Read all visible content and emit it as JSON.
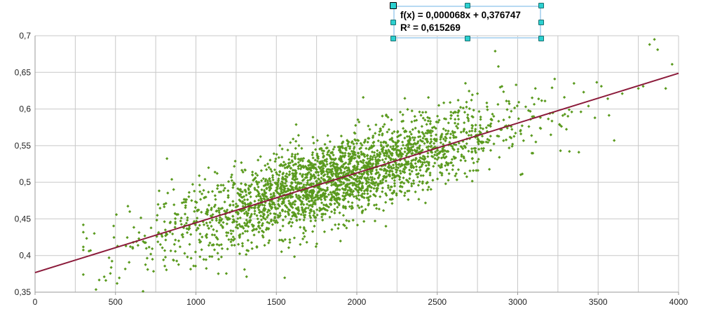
{
  "chart_data": {
    "type": "scatter",
    "title": "",
    "xlabel": "",
    "ylabel": "",
    "xlim": [
      0,
      4000
    ],
    "ylim": [
      0.35,
      0.7
    ],
    "x_ticks": [
      "0",
      "500",
      "1000",
      "1500",
      "2000",
      "2500",
      "3000",
      "3500",
      "4000"
    ],
    "y_ticks": [
      "0,35",
      "0,4",
      "0,45",
      "0,5",
      "0,55",
      "0,6",
      "0,65",
      "0,7"
    ],
    "grid": true,
    "series": [
      {
        "marker_color": "#5a9a1e",
        "points": [
          [
            430,
            0.371
          ],
          [
            440,
            0.366
          ],
          [
            460,
            0.397
          ],
          [
            510,
            0.362
          ],
          [
            610,
            0.418
          ],
          [
            640,
            0.414
          ],
          [
            700,
            0.381
          ],
          [
            730,
            0.395
          ],
          [
            760,
            0.455
          ],
          [
            790,
            0.426
          ],
          [
            850,
            0.504
          ],
          [
            880,
            0.456
          ],
          [
            930,
            0.403
          ],
          [
            960,
            0.437
          ],
          [
            990,
            0.488
          ],
          [
            1010,
            0.462
          ],
          [
            1050,
            0.442
          ],
          [
            1080,
            0.414
          ],
          [
            1120,
            0.469
          ],
          [
            1150,
            0.452
          ],
          [
            1170,
            0.496
          ],
          [
            1200,
            0.431
          ],
          [
            1230,
            0.474
          ],
          [
            1260,
            0.459
          ],
          [
            1290,
            0.413
          ],
          [
            1310,
            0.487
          ],
          [
            1340,
            0.448
          ],
          [
            1370,
            0.506
          ],
          [
            1400,
            0.469
          ],
          [
            1420,
            0.432
          ],
          [
            1440,
            0.491
          ],
          [
            1470,
            0.479
          ],
          [
            1490,
            0.517
          ],
          [
            1510,
            0.455
          ],
          [
            1530,
            0.488
          ],
          [
            1560,
            0.502
          ],
          [
            1580,
            0.471
          ],
          [
            1600,
            0.528
          ],
          [
            1620,
            0.493
          ],
          [
            1640,
            0.461
          ],
          [
            1660,
            0.509
          ],
          [
            1680,
            0.486
          ],
          [
            1700,
            0.523
          ],
          [
            1720,
            0.498
          ],
          [
            1740,
            0.475
          ],
          [
            1760,
            0.535
          ],
          [
            1780,
            0.506
          ],
          [
            1800,
            0.489
          ],
          [
            1820,
            0.541
          ],
          [
            1840,
            0.513
          ],
          [
            1860,
            0.497
          ],
          [
            1880,
            0.524
          ],
          [
            1900,
            0.548
          ],
          [
            1920,
            0.508
          ],
          [
            1940,
            0.486
          ],
          [
            1960,
            0.532
          ],
          [
            1980,
            0.517
          ],
          [
            2000,
            0.553
          ],
          [
            2020,
            0.501
          ],
          [
            2040,
            0.539
          ],
          [
            2060,
            0.522
          ],
          [
            2080,
            0.494
          ],
          [
            2100,
            0.561
          ],
          [
            2120,
            0.528
          ],
          [
            2140,
            0.509
          ],
          [
            2160,
            0.546
          ],
          [
            2180,
            0.532
          ],
          [
            2200,
            0.572
          ],
          [
            2220,
            0.515
          ],
          [
            2240,
            0.554
          ],
          [
            2260,
            0.537
          ],
          [
            2280,
            0.583
          ],
          [
            2300,
            0.521
          ],
          [
            2330,
            0.559
          ],
          [
            2360,
            0.544
          ],
          [
            2390,
            0.596
          ],
          [
            2420,
            0.531
          ],
          [
            2450,
            0.568
          ],
          [
            2480,
            0.553
          ],
          [
            2510,
            0.605
          ],
          [
            2540,
            0.548
          ],
          [
            2570,
            0.581
          ],
          [
            2600,
            0.564
          ],
          [
            2630,
            0.612
          ],
          [
            2660,
            0.556
          ],
          [
            2690,
            0.592
          ],
          [
            2720,
            0.577
          ],
          [
            2750,
            0.621
          ],
          [
            2780,
            0.563
          ],
          [
            2810,
            0.603
          ],
          [
            2840,
            0.585
          ],
          [
            2860,
            0.679
          ],
          [
            2880,
            0.658
          ],
          [
            2900,
            0.572
          ],
          [
            2930,
            0.611
          ],
          [
            2960,
            0.597
          ],
          [
            2990,
            0.633
          ],
          [
            3020,
            0.566
          ],
          [
            3050,
            0.603
          ],
          [
            3080,
            0.586
          ],
          [
            3110,
            0.628
          ],
          [
            3140,
            0.574
          ],
          [
            3170,
            0.611
          ],
          [
            3200,
            0.594
          ],
          [
            3230,
            0.641
          ],
          [
            3260,
            0.579
          ],
          [
            3290,
            0.616
          ],
          [
            3320,
            0.599
          ],
          [
            3350,
            0.635
          ],
          [
            3380,
            0.541
          ],
          [
            3410,
            0.623
          ],
          [
            3440,
            0.604
          ],
          [
            3480,
            0.588
          ],
          [
            3520,
            0.631
          ],
          [
            3560,
            0.614
          ],
          [
            3600,
            0.557
          ],
          [
            3650,
            0.621
          ],
          [
            3750,
            0.628
          ],
          [
            3780,
            0.631
          ],
          [
            3820,
            0.688
          ],
          [
            3850,
            0.695
          ],
          [
            3870,
            0.681
          ],
          [
            3920,
            0.628
          ],
          [
            3960,
            0.661
          ]
        ]
      }
    ],
    "trendline": {
      "color": "#8b1a3a",
      "slope": 6.8e-05,
      "intercept": 0.376747
    },
    "annotation": {
      "equation": "f(x) = 0,000068x + 0,376747",
      "r_squared": "R² = 0,615269"
    }
  }
}
